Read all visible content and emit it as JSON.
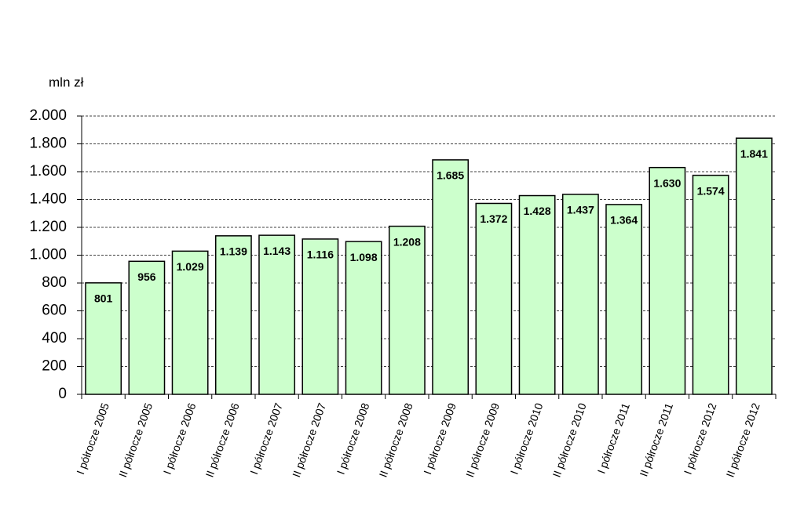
{
  "chart_data": {
    "type": "bar",
    "y_label": "mln zł",
    "categories": [
      "I półrocze 2005",
      "II półrocze 2005",
      "I półrocze 2006",
      "II półrocze 2006",
      "I półrocze 2007",
      "II półrocze 2007",
      "I półrocze 2008",
      "II półrocze 2008",
      "I półrocze 2009",
      "II półrocze 2009",
      "I półrocze 2010",
      "II półrocze 2010",
      "I półrocze 2011",
      "II półrocze 2011",
      "I półrocze 2012",
      "II półrocze 2012"
    ],
    "values": [
      801,
      956,
      1029,
      1139,
      1143,
      1116,
      1098,
      1208,
      1685,
      1372,
      1428,
      1437,
      1364,
      1630,
      1574,
      1841
    ],
    "value_labels": [
      "801",
      "956",
      "1.029",
      "1.139",
      "1.143",
      "1.116",
      "1.098",
      "1.208",
      "1.685",
      "1.372",
      "1.428",
      "1.437",
      "1.364",
      "1.630",
      "1.574",
      "1.841"
    ],
    "color": "#ccffcc",
    "ylim": [
      0,
      2000
    ],
    "yticks": [
      0,
      200,
      400,
      600,
      800,
      {
        "value": 1000,
        "label": "1.000"
      },
      {
        "value": 1200,
        "label": "1.200"
      },
      {
        "value": 1400,
        "label": "1.400"
      },
      {
        "value": 1600,
        "label": "1.600"
      },
      {
        "value": 1800,
        "label": "1.800"
      },
      {
        "value": 2000,
        "label": "2.000"
      }
    ],
    "grid": true
  }
}
